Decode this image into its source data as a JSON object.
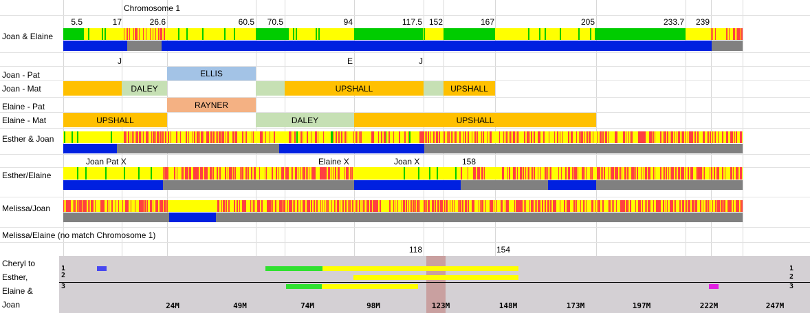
{
  "colors": {
    "match": "#00cc00",
    "half": "#ffff00",
    "none": "#ff4040",
    "blue": "#0020e0",
    "grey": "#808080",
    "ellis": "#a3c3e6",
    "daley": "#c6e0b4",
    "upshall": "#ffc000",
    "rayner": "#f4b183",
    "browser_bg": "#d4d0d4",
    "centromere": "#c9a0a0"
  },
  "header": {
    "title": "Chromosome 1",
    "positions": [
      "5.5",
      "17",
      "26.6",
      "60.5",
      "70.5",
      "94",
      "117.5",
      "152",
      "167",
      "205",
      "233.7",
      "239"
    ]
  },
  "row_labels": {
    "joan_elaine": "Joan & Elaine",
    "joan_pat": "Joan - Pat",
    "joan_mat": "Joan - Mat",
    "elaine_pat": "Elaine - Pat",
    "elaine_mat": "Elaine - Mat",
    "esther_joan": "Esther & Joan",
    "esther_elaine": "Esther/Elaine",
    "melissa_joan": "Melissa/Joan",
    "melissa_elaine": "Melissa/Elaine (no match Chromosome 1)"
  },
  "markers": {
    "j1": "J",
    "e": "E",
    "j2": "J"
  },
  "crossovers": {
    "joan_pat_x": "Joan Pat X",
    "elaine_x": "Elaine X",
    "joan_x": "Joan X",
    "pos_158": "158"
  },
  "segments": {
    "ellis": "ELLIS",
    "daley_joan": "DALEY",
    "upshall_joan_1": "UPSHALL",
    "upshall_joan_2": "UPSHALL",
    "rayner": "RAYNER",
    "upshall_elaine_1": "UPSHALL",
    "daley_elaine": "DALEY",
    "upshall_elaine_2": "UPSHALL"
  },
  "browser": {
    "positions": [
      "118",
      "154"
    ],
    "labels": [
      "Cheryl to",
      "Esther,",
      "Elaine &",
      "Joan"
    ],
    "row_numbers": [
      "1",
      "2",
      "3"
    ],
    "ticks": [
      "24M",
      "49M",
      "74M",
      "98M",
      "123M",
      "148M",
      "173M",
      "197M",
      "222M",
      "247M"
    ]
  }
}
